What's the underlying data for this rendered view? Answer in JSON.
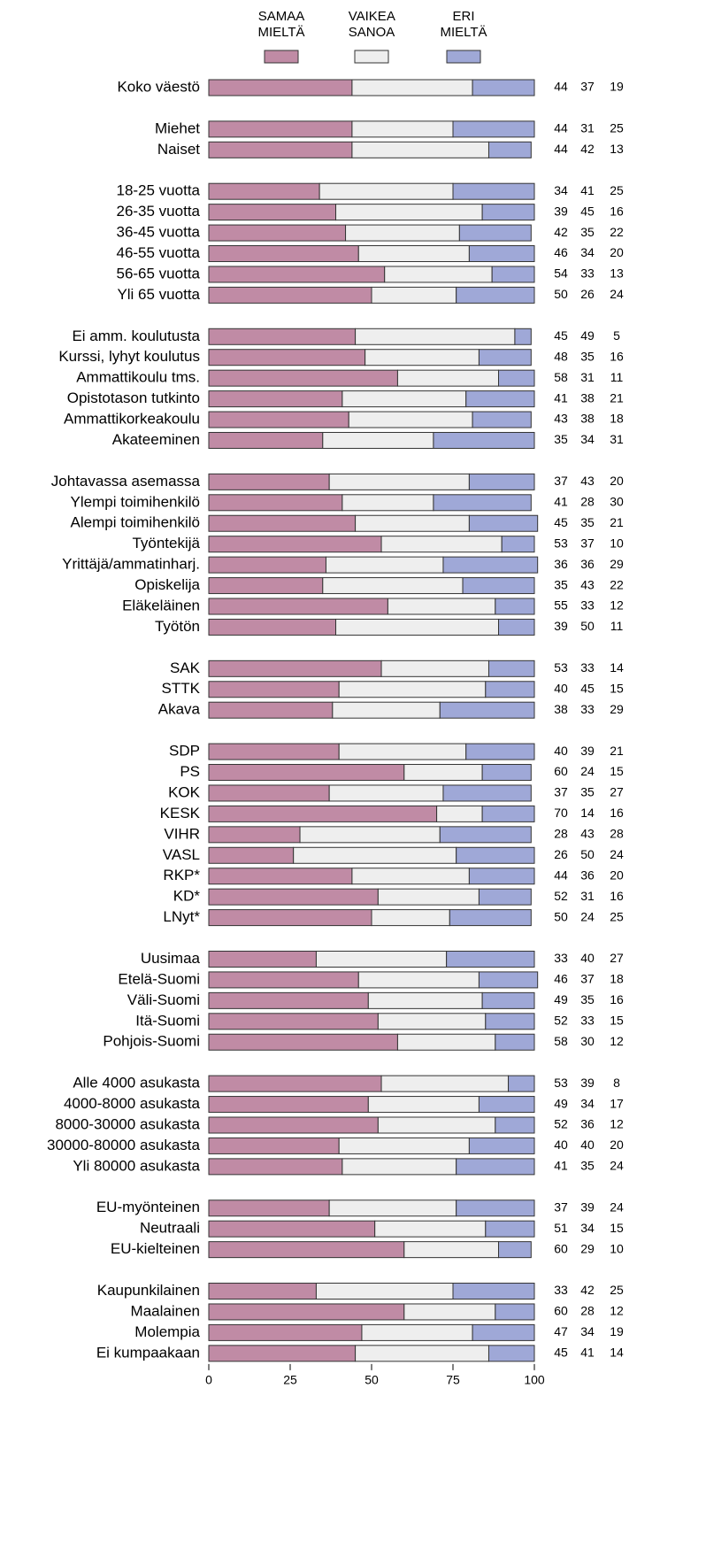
{
  "chart_data": {
    "type": "stacked_barh",
    "categories": [
      "Koko väestö",
      null,
      "Miehet",
      "Naiset",
      null,
      "18-25 vuotta",
      "26-35 vuotta",
      "36-45 vuotta",
      "46-55 vuotta",
      "56-65 vuotta",
      "Yli 65 vuotta",
      null,
      "Ei amm. koulutusta",
      "Kurssi, lyhyt koulutus",
      "Ammattikoulu tms.",
      "Opistotason tutkinto",
      "Ammattikorkeakoulu",
      "Akateeminen",
      null,
      "Johtavassa asemassa",
      "Ylempi toimihenkilö",
      "Alempi toimihenkilö",
      "Työntekijä",
      "Yrittäjä/ammatinharj.",
      "Opiskelija",
      "Eläkeläinen",
      "Työtön",
      null,
      "SAK",
      "STTK",
      "Akava",
      null,
      "SDP",
      "PS",
      "KOK",
      "KESK",
      "VIHR",
      "VASL",
      "RKP*",
      "KD*",
      "LNyt*",
      null,
      "Uusimaa",
      "Etelä-Suomi",
      "Väli-Suomi",
      "Itä-Suomi",
      "Pohjois-Suomi",
      null,
      "Alle 4000 asukasta",
      "4000-8000 asukasta",
      "8000-30000 asukasta",
      "30000-80000 asukasta",
      "Yli 80000 asukasta",
      null,
      "EU-myönteinen",
      "Neutraali",
      "EU-kielteinen",
      null,
      "Kaupunkilainen",
      "Maalainen",
      "Molempia",
      "Ei kumpaakaan"
    ],
    "series": [
      {
        "name": "SAMAA MIELTÄ",
        "color": "#c08ba5",
        "values": [
          44,
          null,
          44,
          44,
          null,
          34,
          39,
          42,
          46,
          54,
          50,
          null,
          45,
          48,
          58,
          41,
          43,
          35,
          null,
          37,
          41,
          45,
          53,
          36,
          35,
          55,
          39,
          null,
          53,
          40,
          38,
          null,
          40,
          60,
          37,
          70,
          28,
          26,
          44,
          52,
          50,
          null,
          33,
          46,
          49,
          52,
          58,
          null,
          53,
          49,
          52,
          40,
          41,
          null,
          37,
          51,
          60,
          null,
          33,
          60,
          47,
          45
        ]
      },
      {
        "name": "VAIKEA SANOA",
        "color": "#eeeeee",
        "values": [
          37,
          null,
          31,
          42,
          null,
          41,
          45,
          35,
          34,
          33,
          26,
          null,
          49,
          35,
          31,
          38,
          38,
          34,
          null,
          43,
          28,
          35,
          37,
          36,
          43,
          33,
          50,
          null,
          33,
          45,
          33,
          null,
          39,
          24,
          35,
          14,
          43,
          50,
          36,
          31,
          24,
          null,
          40,
          37,
          35,
          33,
          30,
          null,
          39,
          34,
          36,
          40,
          35,
          null,
          39,
          34,
          29,
          null,
          42,
          28,
          34,
          41
        ]
      },
      {
        "name": "ERI MIELTÄ",
        "color": "#9fa8d7",
        "values": [
          19,
          null,
          25,
          13,
          null,
          25,
          16,
          22,
          20,
          13,
          24,
          null,
          5,
          16,
          11,
          21,
          18,
          31,
          null,
          20,
          30,
          21,
          10,
          29,
          22,
          12,
          11,
          null,
          14,
          15,
          29,
          null,
          21,
          15,
          27,
          16,
          28,
          24,
          20,
          16,
          25,
          null,
          27,
          18,
          16,
          15,
          12,
          null,
          8,
          17,
          12,
          20,
          24,
          null,
          24,
          15,
          10,
          null,
          25,
          12,
          19,
          14
        ]
      }
    ],
    "xlim": [
      0,
      100
    ],
    "xticks": [
      0,
      25,
      50,
      75,
      100
    ]
  }
}
